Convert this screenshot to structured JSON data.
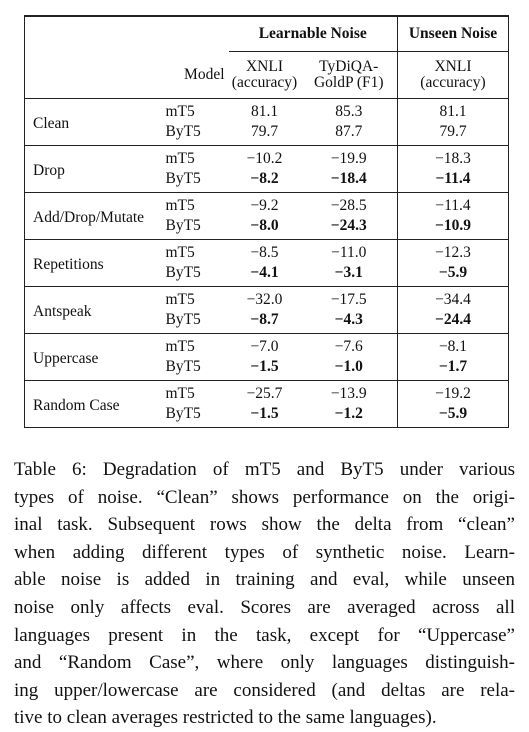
{
  "table": {
    "header": {
      "groups": [
        "Learnable Noise",
        "Unseen Noise"
      ],
      "model": "Model",
      "columns": [
        [
          "XNLI",
          "(accuracy)"
        ],
        [
          "TyDiQA-",
          "GoldP (F1)"
        ],
        [
          "XNLI",
          "(accuracy)"
        ]
      ]
    },
    "groups": [
      {
        "label": "Clean",
        "rows": [
          {
            "model": "mT5",
            "values": [
              "81.1",
              "85.3",
              "81.1"
            ]
          },
          {
            "model": "ByT5",
            "values": [
              "79.7",
              "87.7",
              "79.7"
            ]
          }
        ]
      },
      {
        "label": "Drop",
        "rows": [
          {
            "model": "mT5",
            "values": [
              "−10.2",
              "−19.9",
              "−18.3"
            ]
          },
          {
            "model": "ByT5",
            "values": [
              "−8.2",
              "−18.4",
              "−11.4"
            ]
          }
        ]
      },
      {
        "label": "Add/Drop/Mutate",
        "rows": [
          {
            "model": "mT5",
            "values": [
              "−9.2",
              "−28.5",
              "−11.4"
            ]
          },
          {
            "model": "ByT5",
            "values": [
              "−8.0",
              "−24.3",
              "−10.9"
            ]
          }
        ]
      },
      {
        "label": "Repetitions",
        "rows": [
          {
            "model": "mT5",
            "values": [
              "−8.5",
              "−11.0",
              "−12.3"
            ]
          },
          {
            "model": "ByT5",
            "values": [
              "−4.1",
              "−3.1",
              "−5.9"
            ]
          }
        ]
      },
      {
        "label": "Antspeak",
        "rows": [
          {
            "model": "mT5",
            "values": [
              "−32.0",
              "−17.5",
              "−34.4"
            ]
          },
          {
            "model": "ByT5",
            "values": [
              "−8.7",
              "−4.3",
              "−24.4"
            ]
          }
        ]
      },
      {
        "label": "Uppercase",
        "rows": [
          {
            "model": "mT5",
            "values": [
              "−7.0",
              "−7.6",
              "−8.1"
            ]
          },
          {
            "model": "ByT5",
            "values": [
              "−1.5",
              "−1.0",
              "−1.7"
            ]
          }
        ]
      },
      {
        "label": "Random Case",
        "rows": [
          {
            "model": "mT5",
            "values": [
              "−25.7",
              "−13.9",
              "−19.2"
            ]
          },
          {
            "model": "ByT5",
            "values": [
              "−1.5",
              "−1.2",
              "−5.9"
            ]
          }
        ]
      }
    ]
  },
  "caption": [
    "Table 6: Degradation of mT5 and ByT5 under various",
    "types of noise. “Clean” shows performance on the origi-",
    "inal task. Subsequent rows show the delta from “clean”",
    "when adding different types of synthetic noise. Learn-",
    "able noise is added in training and eval, while unseen",
    "noise only affects eval. Scores are averaged across all",
    "languages present in the task, except for “Uppercase”",
    "and “Random Case”, where only languages distinguish-",
    "ing upper/lowercase are considered (and deltas are rela-",
    "tive to clean averages restricted to the same languages)."
  ]
}
